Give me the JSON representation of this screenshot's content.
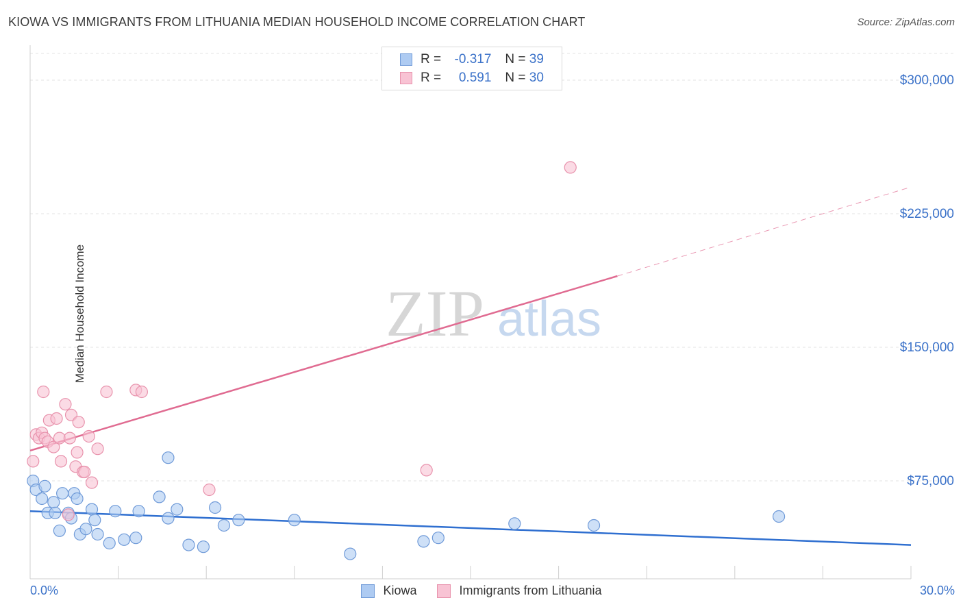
{
  "title": "KIOWA VS IMMIGRANTS FROM LITHUANIA MEDIAN HOUSEHOLD INCOME CORRELATION CHART",
  "source": "Source: ZipAtlas.com",
  "watermark": {
    "zip": "ZIP",
    "atlas": "atlas"
  },
  "legend": {
    "r_label": "R =",
    "n_label": "N =",
    "rows": [
      {
        "r": "-0.317",
        "n": "39",
        "fill": "#aecbf2",
        "stroke": "#6f9ad8"
      },
      {
        "r": "0.591",
        "n": "30",
        "fill": "#f8c3d4",
        "stroke": "#e892ac"
      }
    ]
  },
  "bottom_legend": [
    "Kiowa",
    "Immigrants from Lithuania"
  ],
  "colors": {
    "kiowa_fill": "#aecbf2",
    "kiowa_stroke": "#6f9ad8",
    "kiowa_line": "#2f6fd0",
    "lith_fill": "#f8c3d4",
    "lith_stroke": "#e892ac",
    "lith_line": "#e06b91",
    "axis_label": "#3b72c9",
    "grid": "#e3e3e3"
  },
  "chart_data": {
    "type": "scatter",
    "title": "KIOWA VS IMMIGRANTS FROM LITHUANIA MEDIAN HOUSEHOLD INCOME CORRELATION CHART",
    "xlabel": "",
    "ylabel": "Median Household Income",
    "xlim": [
      0,
      30
    ],
    "ylim": [
      20000,
      315000
    ],
    "x_tick_labels": [
      "0.0%",
      "30.0%"
    ],
    "y_ticks": [
      75000,
      150000,
      225000,
      300000
    ],
    "y_tick_labels": [
      "$75,000",
      "$150,000",
      "$225,000",
      "$300,000"
    ],
    "grid": "horizontal dashed",
    "legend_placement": "top-center",
    "series": [
      {
        "name": "Kiowa",
        "points": [
          [
            0.1,
            75000
          ],
          [
            0.2,
            70000
          ],
          [
            0.4,
            65000
          ],
          [
            0.5,
            72000
          ],
          [
            0.6,
            57000
          ],
          [
            0.8,
            63000
          ],
          [
            0.85,
            57000
          ],
          [
            1.0,
            47000
          ],
          [
            1.1,
            68000
          ],
          [
            1.3,
            57000
          ],
          [
            1.4,
            54000
          ],
          [
            1.5,
            68000
          ],
          [
            1.6,
            65000
          ],
          [
            1.7,
            45000
          ],
          [
            1.9,
            48000
          ],
          [
            2.1,
            59000
          ],
          [
            2.2,
            53000
          ],
          [
            2.3,
            45000
          ],
          [
            2.7,
            40000
          ],
          [
            2.9,
            58000
          ],
          [
            3.2,
            42000
          ],
          [
            3.6,
            43000
          ],
          [
            3.7,
            58000
          ],
          [
            4.4,
            66000
          ],
          [
            4.7,
            54000
          ],
          [
            4.7,
            88000
          ],
          [
            5.0,
            59000
          ],
          [
            5.4,
            39000
          ],
          [
            5.9,
            38000
          ],
          [
            6.3,
            60000
          ],
          [
            6.6,
            50000
          ],
          [
            7.1,
            53000
          ],
          [
            9.0,
            53000
          ],
          [
            10.9,
            34000
          ],
          [
            13.4,
            41000
          ],
          [
            13.9,
            43000
          ],
          [
            16.5,
            51000
          ],
          [
            19.2,
            50000
          ],
          [
            25.5,
            55000
          ]
        ],
        "trend": {
          "x": [
            0,
            30
          ],
          "y": [
            58000,
            39000
          ]
        }
      },
      {
        "name": "Immigrants from Lithuania",
        "points": [
          [
            0.1,
            86000
          ],
          [
            0.2,
            101000
          ],
          [
            0.3,
            99000
          ],
          [
            0.4,
            102000
          ],
          [
            0.45,
            125000
          ],
          [
            0.5,
            99000
          ],
          [
            0.6,
            97000
          ],
          [
            0.65,
            109000
          ],
          [
            0.8,
            94000
          ],
          [
            0.9,
            110000
          ],
          [
            1.0,
            99000
          ],
          [
            1.05,
            86000
          ],
          [
            1.2,
            118000
          ],
          [
            1.3,
            56000
          ],
          [
            1.35,
            99000
          ],
          [
            1.4,
            112000
          ],
          [
            1.55,
            83000
          ],
          [
            1.6,
            91000
          ],
          [
            1.65,
            108000
          ],
          [
            1.8,
            80000
          ],
          [
            1.85,
            80000
          ],
          [
            2.0,
            100000
          ],
          [
            2.1,
            74000
          ],
          [
            2.3,
            93000
          ],
          [
            2.6,
            125000
          ],
          [
            3.6,
            126000
          ],
          [
            3.8,
            125000
          ],
          [
            6.1,
            70000
          ],
          [
            13.5,
            81000
          ],
          [
            18.4,
            251000
          ]
        ],
        "trend": {
          "x": [
            0,
            20
          ],
          "y": [
            92000,
            190000
          ]
        },
        "trend_extension": {
          "x": [
            20,
            30
          ],
          "y": [
            190000,
            240000
          ]
        }
      }
    ]
  }
}
